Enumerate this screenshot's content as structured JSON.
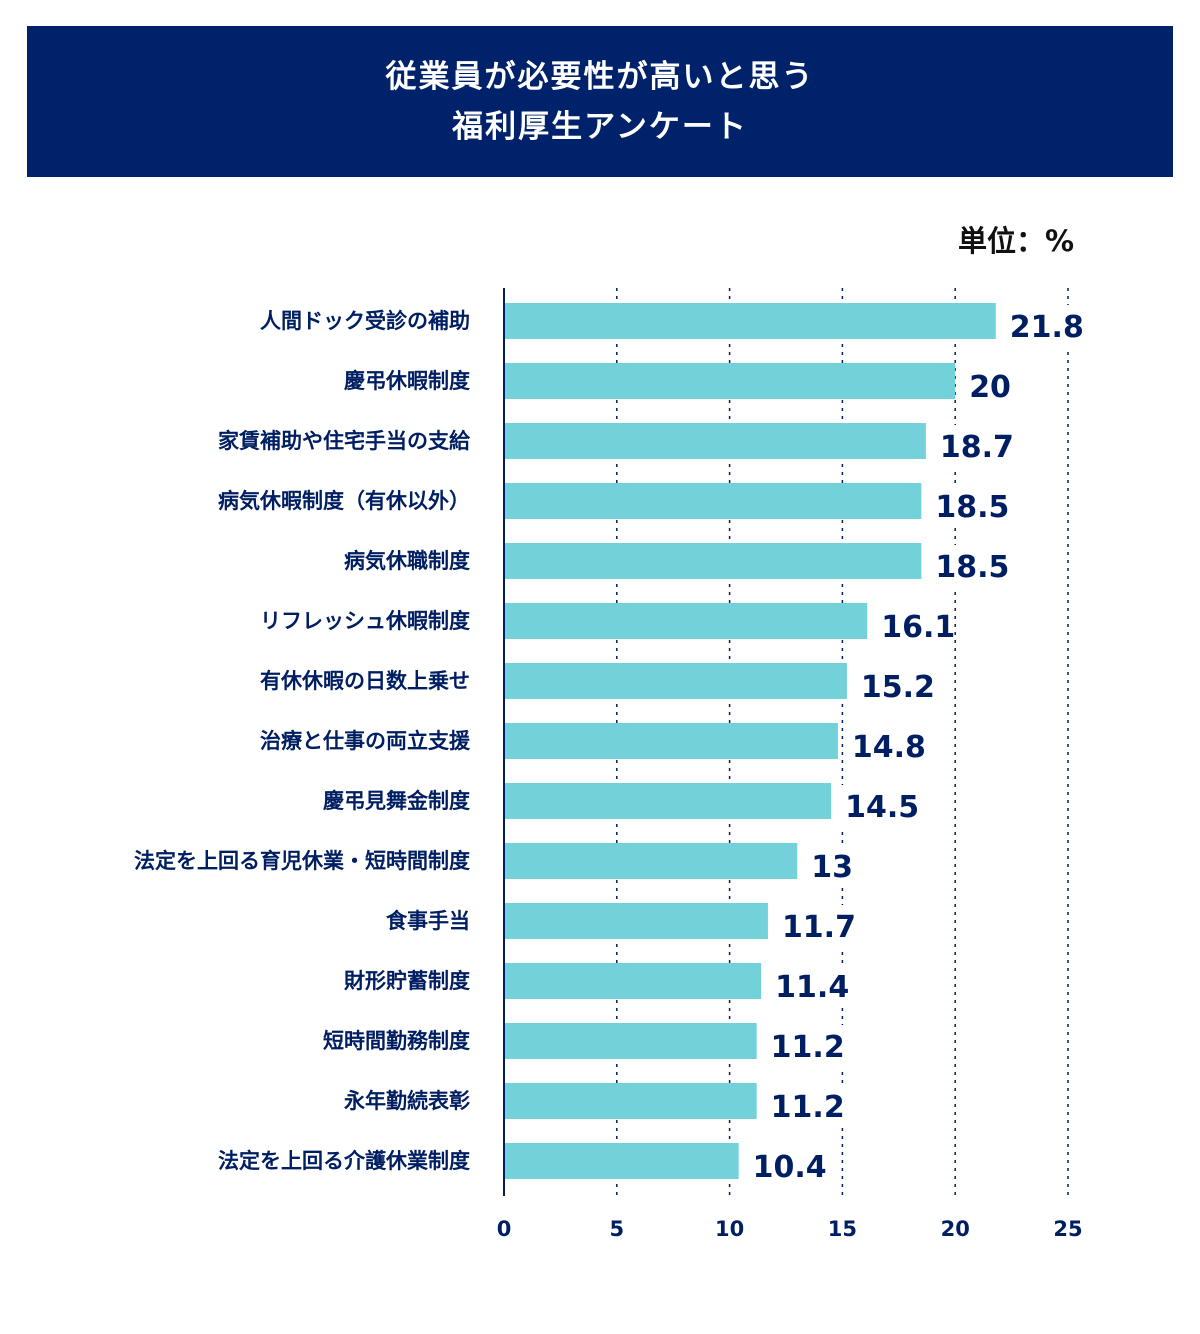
{
  "title": {
    "line1": "従業員が必要性が高いと思う",
    "line2": "福利厚生アンケート"
  },
  "unit_label": "単位：%",
  "colors": {
    "banner": "#00226a",
    "bar": "#73d2d9",
    "text": "#001e62",
    "gridline": "#001e62"
  },
  "chart_data": {
    "type": "bar",
    "orientation": "horizontal",
    "title": "従業員が必要性が高いと思う 福利厚生アンケート",
    "unit": "単位：%",
    "categories": [
      "人間ドック受診の補助",
      "慶弔休暇制度",
      "家賃補助や住宅手当の支給",
      "病気休暇制度（有休以外）",
      "病気休職制度",
      "リフレッシュ休暇制度",
      "有休休暇の日数上乗せ",
      "治療と仕事の両立支援",
      "慶弔見舞金制度",
      "法定を上回る育児休業・短時間制度",
      "食事手当",
      "財形貯蓄制度",
      "短時間勤務制度",
      "永年勤続表彰",
      "法定を上回る介護休業制度"
    ],
    "values": [
      21.8,
      20,
      18.7,
      18.5,
      18.5,
      16.1,
      15.2,
      14.8,
      14.5,
      13,
      11.7,
      11.4,
      11.2,
      11.2,
      10.4
    ],
    "xlim": [
      0,
      25
    ],
    "xticks": [
      0,
      5,
      10,
      15,
      20,
      25
    ],
    "grid": "vertical dotted",
    "legend": "none"
  }
}
